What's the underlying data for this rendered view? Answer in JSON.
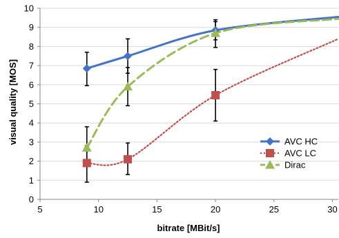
{
  "chart_data": {
    "type": "line",
    "xlabel": "bitrate [MBit/s]",
    "ylabel": "visual quality [MOS]",
    "xlim": [
      5,
      30.5
    ],
    "ylim": [
      0,
      10
    ],
    "xticks": [
      5,
      10,
      15,
      20,
      25,
      30
    ],
    "yticks": [
      0,
      1,
      2,
      3,
      4,
      5,
      6,
      7,
      8,
      9,
      10
    ],
    "grid": "horizontal",
    "legend": "right",
    "series": [
      {
        "name": "AVC HC",
        "color": "#4472C4",
        "marker": "diamond",
        "line": "solid",
        "x": [
          9,
          12.5,
          20,
          30.5
        ],
        "y": [
          6.85,
          7.5,
          8.85,
          9.55
        ],
        "err_low": [
          5.95,
          6.6,
          8.35,
          null
        ],
        "err_high": [
          7.7,
          8.4,
          9.4,
          null
        ]
      },
      {
        "name": "AVC LC",
        "color": "#C0504D",
        "marker": "square",
        "line": "dotted",
        "x": [
          9,
          12.5,
          20,
          30.5
        ],
        "y": [
          1.9,
          2.1,
          5.45,
          8.4
        ],
        "err_low": [
          0.9,
          1.3,
          4.1,
          null
        ],
        "err_high": [
          2.8,
          2.95,
          6.8,
          null
        ]
      },
      {
        "name": "Dirac",
        "color": "#9BBB59",
        "marker": "triangle",
        "line": "dashed",
        "x": [
          9,
          12.5,
          20,
          30.5
        ],
        "y": [
          2.7,
          5.9,
          8.7,
          9.45
        ],
        "err_low": [
          1.9,
          4.9,
          7.95,
          null
        ],
        "err_high": [
          3.8,
          6.9,
          9.3,
          null
        ]
      }
    ]
  }
}
